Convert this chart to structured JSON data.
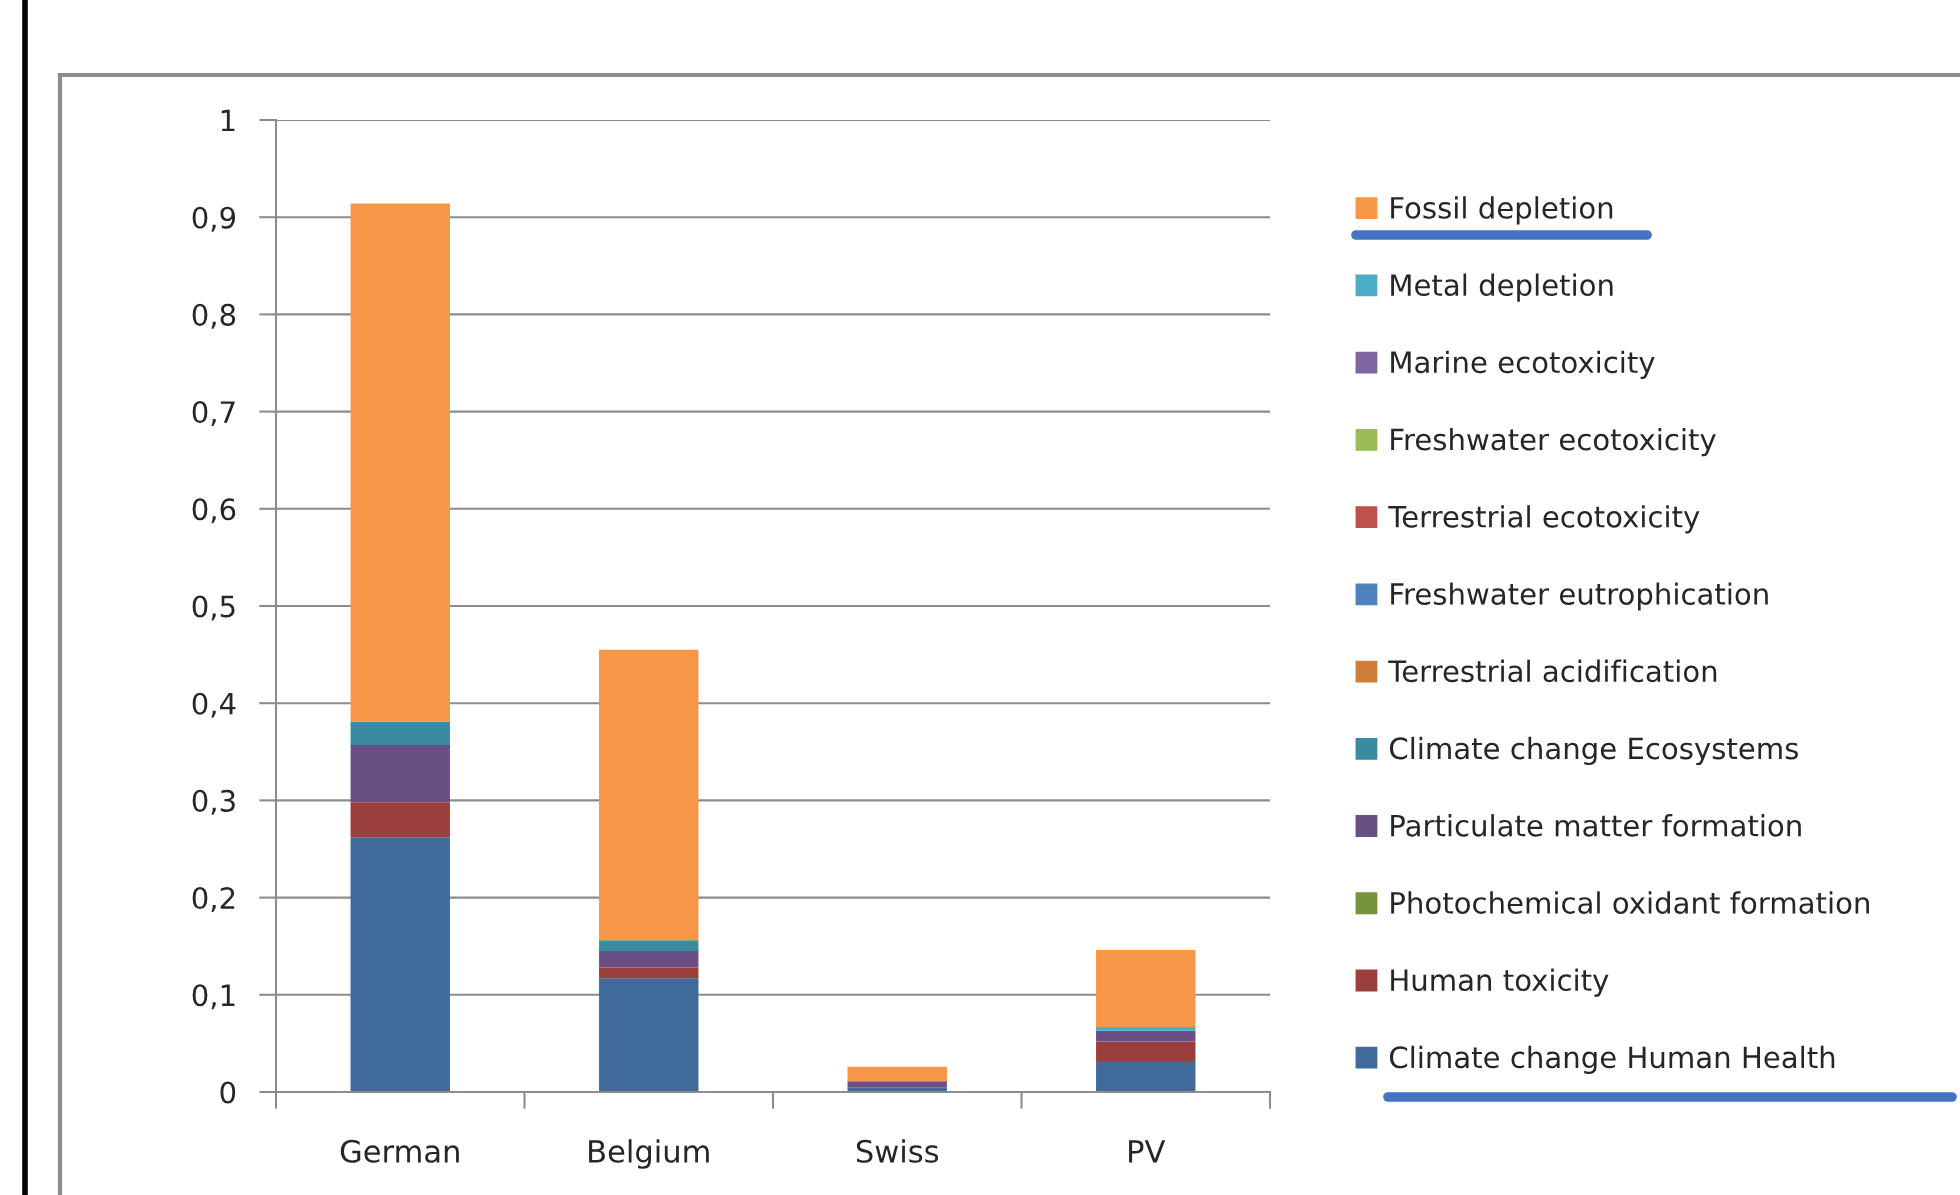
{
  "chart_data": {
    "type": "bar",
    "stacked": true,
    "categories": [
      "German",
      "Belgium",
      "Swiss",
      "PV"
    ],
    "series": [
      {
        "name": "Climate change Human Health",
        "color": "#3f6a9a",
        "values": [
          0.262,
          0.117,
          0.005,
          0.032
        ]
      },
      {
        "name": "Human toxicity",
        "color": "#9b3f3c",
        "values": [
          0.036,
          0.011,
          0.0,
          0.02
        ]
      },
      {
        "name": "Photochemical oxidant formation",
        "color": "#77933c",
        "values": [
          0,
          0,
          0,
          0
        ]
      },
      {
        "name": "Particulate matter formation",
        "color": "#6a4f85",
        "values": [
          0.059,
          0.017,
          0.006,
          0.011
        ]
      },
      {
        "name": "Climate change Ecosystems",
        "color": "#3b8ba0",
        "values": [
          0.024,
          0.011,
          0,
          0
        ]
      },
      {
        "name": "Terrestrial acidification",
        "color": "#d07d3a",
        "values": [
          0,
          0,
          0,
          0
        ]
      },
      {
        "name": "Freshwater eutrophication",
        "color": "#4f81bd",
        "values": [
          0,
          0,
          0,
          0
        ]
      },
      {
        "name": "Terrestrial ecotoxicity",
        "color": "#c0504d",
        "values": [
          0,
          0,
          0,
          0
        ]
      },
      {
        "name": "Freshwater ecotoxicity",
        "color": "#9bbb59",
        "values": [
          0,
          0,
          0,
          0
        ]
      },
      {
        "name": "Marine ecotoxicity",
        "color": "#8064a2",
        "values": [
          0,
          0,
          0,
          0
        ]
      },
      {
        "name": "Metal depletion",
        "color": "#4bacc6",
        "values": [
          0,
          0,
          0,
          0.004
        ]
      },
      {
        "name": "Fossil depletion",
        "color": "#f79646",
        "values": [
          0.533,
          0.299,
          0.015,
          0.079
        ]
      }
    ],
    "ylim": [
      0,
      1
    ],
    "yticks": [
      0,
      {
        "value": 0.1,
        "label": "0,1"
      },
      {
        "value": 0.2,
        "label": "0,2"
      },
      {
        "value": 0.3,
        "label": "0,3"
      },
      {
        "value": 0.4,
        "label": "0,4"
      },
      {
        "value": 0.5,
        "label": "0,5"
      },
      {
        "value": 0.6,
        "label": "0,6"
      },
      {
        "value": 0.7,
        "label": "0,7"
      },
      {
        "value": 0.8,
        "label": "0,8"
      },
      {
        "value": 0.9,
        "label": "0,9"
      },
      1
    ],
    "grid": "y",
    "legend": "right"
  }
}
